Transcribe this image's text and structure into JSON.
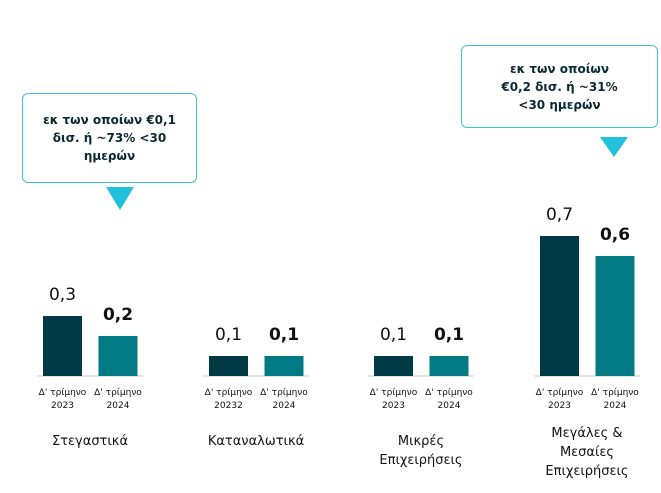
{
  "chart_data": {
    "type": "bar",
    "categories": [
      "Στεγαστικά",
      "Καταναλωτικά",
      "Μικρές\nΕπιχειρήσεις",
      "Μεγάλες &\nΜεσαίες\nΕπιχειρήσεις"
    ],
    "bar_labels": [
      [
        "Δ' τρίμηνο\n2023",
        "Δ' τρίμηνο\n2024"
      ],
      [
        "Δ' τρίμηνο\n20232",
        "Δ' τρίμηνο\n2024"
      ],
      [
        "Δ' τρίμηνο\n2023",
        "Δ' τρίμηνο\n2024"
      ],
      [
        "Δ' τρίμηνο\n2023",
        "Δ' τρίμηνο\n2024"
      ]
    ],
    "series": [
      {
        "color": "#003a45",
        "values": [
          0.3,
          0.1,
          0.1,
          0.7
        ],
        "value_labels": [
          "0,3",
          "0,1",
          "0,1",
          "0,7"
        ],
        "label_bold": false
      },
      {
        "color": "#007a85",
        "values": [
          0.2,
          0.1,
          0.1,
          0.6
        ],
        "value_labels": [
          "0,2",
          "0,1",
          "0,1",
          "0,6"
        ],
        "label_bold": true
      }
    ],
    "annotations": [
      "εκ των οποίων €0,1 δισ. ή ~73% <30 ημερών",
      "εκ των οποίων €0,2 δισ. ή ~31% <30 ημερών"
    ]
  }
}
